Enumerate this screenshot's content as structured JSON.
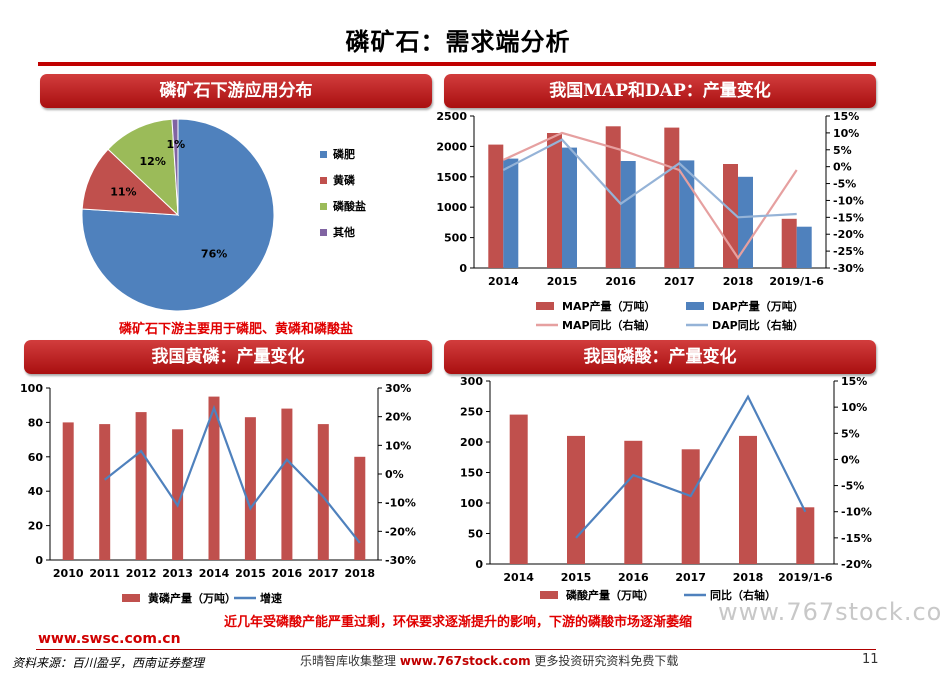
{
  "page": {
    "title": "磷矿石：需求端分析",
    "watermark": "www.767stock.co",
    "footer": {
      "url": "www.swsc.com.cn",
      "source": "资料来源：百川盈孚，西南证券整理",
      "mid_text_a": "乐晴智库收集整理",
      "mid_url": "www.767stock.com",
      "mid_text_b": "更多投资研究资料免费下载",
      "page_number": "11"
    }
  },
  "panels": {
    "pie_header": "磷矿石下游应用分布",
    "pie_caption": "磷矿石下游主要用于磷肥、黄磷和磷酸盐",
    "map_header": "我国MAP和DAP：产量变化",
    "yp_header": "我国黄磷：产量变化",
    "pa_header": "我国磷酸：产量变化",
    "bottom_caption": "近几年受磷酸产能严重过剩，环保要求逐渐提升的影响，下游的磷酸市场逐渐萎缩"
  },
  "chart_data": [
    {
      "id": "pie",
      "type": "pie",
      "slices": [
        {
          "name": "磷肥",
          "value": 76,
          "label": "76%",
          "color": "#4f81bd"
        },
        {
          "name": "黄磷",
          "value": 11,
          "label": "11%",
          "color": "#c0504d"
        },
        {
          "name": "磷酸盐",
          "value": 12,
          "label": "12%",
          "color": "#9bbb59"
        },
        {
          "name": "其他",
          "value": 1,
          "label": "1%",
          "color": "#8064a2"
        }
      ],
      "legend_position": "right"
    },
    {
      "id": "map",
      "type": "bar",
      "categories": [
        "2014",
        "2015",
        "2016",
        "2017",
        "2018",
        "2019/1-6"
      ],
      "series": [
        {
          "name": "MAP产量（万吨）",
          "kind": "bar",
          "axis": "left",
          "color": "#c0504d",
          "values": [
            2030,
            2220,
            2330,
            2310,
            1710,
            810
          ]
        },
        {
          "name": "DAP产量（万吨）",
          "kind": "bar",
          "axis": "left",
          "color": "#4f81bd",
          "values": [
            1800,
            1980,
            1760,
            1770,
            1500,
            680
          ]
        },
        {
          "name": "MAP同比（右轴）",
          "kind": "line",
          "axis": "right",
          "color": "#e6a0a0",
          "values": [
            2,
            10,
            5,
            -1,
            -27,
            -1
          ]
        },
        {
          "name": "DAP同比（右轴）",
          "kind": "line",
          "axis": "right",
          "color": "#95b3d7",
          "values": [
            -1,
            8,
            -11,
            1,
            -15,
            -14
          ]
        }
      ],
      "ylim": [
        0,
        2500
      ],
      "yticks": [
        "0",
        "500",
        "1000",
        "1500",
        "2000",
        "2500"
      ],
      "y2lim": [
        -30,
        15
      ],
      "y2ticks": [
        "-30%",
        "-25%",
        "-20%",
        "-15%",
        "-10%",
        "-5%",
        "0%",
        "5%",
        "10%",
        "15%"
      ],
      "legend_position": "bottom"
    },
    {
      "id": "yellow_phosphorus",
      "type": "bar",
      "categories": [
        "2010",
        "2011",
        "2012",
        "2013",
        "2014",
        "2015",
        "2016",
        "2017",
        "2018"
      ],
      "series": [
        {
          "name": "黄磷产量（万吨）",
          "kind": "bar",
          "axis": "left",
          "color": "#c0504d",
          "values": [
            80,
            79,
            86,
            76,
            95,
            83,
            88,
            79,
            60
          ]
        },
        {
          "name": "增速",
          "kind": "line",
          "axis": "right",
          "color": "#4f81bd",
          "values": [
            null,
            -2,
            8,
            -11,
            23,
            -12,
            5,
            -8,
            -24
          ]
        }
      ],
      "ylim": [
        0,
        100
      ],
      "yticks": [
        "0",
        "20",
        "40",
        "60",
        "80",
        "100"
      ],
      "y2lim": [
        -30,
        30
      ],
      "y2ticks": [
        "-30%",
        "-20%",
        "-10%",
        "0%",
        "10%",
        "20%",
        "30%"
      ],
      "legend_position": "bottom"
    },
    {
      "id": "phosphoric_acid",
      "type": "bar",
      "categories": [
        "2014",
        "2015",
        "2016",
        "2017",
        "2018",
        "2019/1-6"
      ],
      "series": [
        {
          "name": "磷酸产量（万吨）",
          "kind": "bar",
          "axis": "left",
          "color": "#c0504d",
          "values": [
            245,
            210,
            202,
            188,
            210,
            93
          ]
        },
        {
          "name": "同比（右轴）",
          "kind": "line",
          "axis": "right",
          "color": "#4f81bd",
          "values": [
            null,
            -15,
            -3,
            -7,
            12,
            -10
          ]
        }
      ],
      "ylim": [
        0,
        300
      ],
      "yticks": [
        "0",
        "50",
        "100",
        "150",
        "200",
        "250",
        "300"
      ],
      "y2lim": [
        -20,
        15
      ],
      "y2ticks": [
        "-20%",
        "-15%",
        "-10%",
        "-5%",
        "0%",
        "5%",
        "10%",
        "15%"
      ],
      "legend_position": "bottom"
    }
  ]
}
